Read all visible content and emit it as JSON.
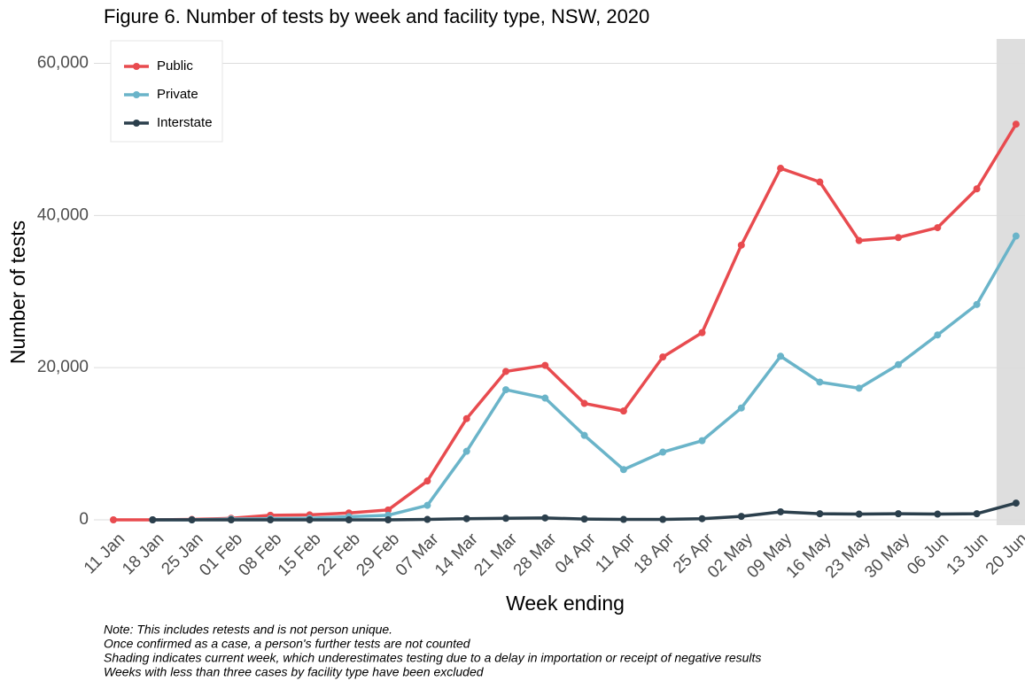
{
  "chart_data": {
    "type": "line",
    "title": "Figure 6. Number of tests by week and facility type, NSW, 2020",
    "x_label": "Week ending",
    "y_label": "Number of tests",
    "categories": [
      "11 Jan",
      "18 Jan",
      "25 Jan",
      "01 Feb",
      "08 Feb",
      "15 Feb",
      "22 Feb",
      "29 Feb",
      "07 Mar",
      "14 Mar",
      "21 Mar",
      "28 Mar",
      "04 Apr",
      "11 Apr",
      "18 Apr",
      "25 Apr",
      "02 May",
      "09 May",
      "16 May",
      "23 May",
      "30 May",
      "06 Jun",
      "13 Jun",
      "20 Jun"
    ],
    "series": [
      {
        "name": "Public",
        "color": "#e84b4f",
        "values": [
          0,
          0,
          50,
          200,
          600,
          650,
          900,
          1300,
          5100,
          13300,
          19500,
          20300,
          15300,
          14300,
          21400,
          24600,
          36100,
          46200,
          44400,
          36700,
          37100,
          38400,
          43500,
          52000
        ]
      },
      {
        "name": "Private",
        "color": "#6ab4c9",
        "values": [
          null,
          0,
          0,
          100,
          150,
          200,
          400,
          600,
          1900,
          9000,
          17100,
          16000,
          11100,
          6600,
          8900,
          10400,
          14700,
          21500,
          18100,
          17300,
          20400,
          24300,
          28300,
          37300
        ]
      },
      {
        "name": "Interstate",
        "color": "#2b3f4c",
        "values": [
          null,
          0,
          0,
          0,
          0,
          0,
          0,
          0,
          50,
          150,
          200,
          250,
          100,
          50,
          50,
          150,
          450,
          1050,
          800,
          750,
          800,
          750,
          800,
          2200
        ]
      }
    ],
    "ylim": [
      -700,
      63200
    ],
    "yticks": [
      0,
      {
        "value": 20000,
        "label": "20,000"
      },
      {
        "value": 40000,
        "label": "40,000"
      },
      {
        "value": 60000,
        "label": "60,000"
      }
    ],
    "grid": true,
    "legend": "top-left",
    "notes": [
      "Note: This includes retests and is not person unique.",
      "Once confirmed as a case, a person's further tests are not counted",
      "Shading indicates current week, which underestimates testing due to a delay in importation or receipt of negative results",
      "Weeks with less than three cases by facility type have been excluded"
    ]
  }
}
